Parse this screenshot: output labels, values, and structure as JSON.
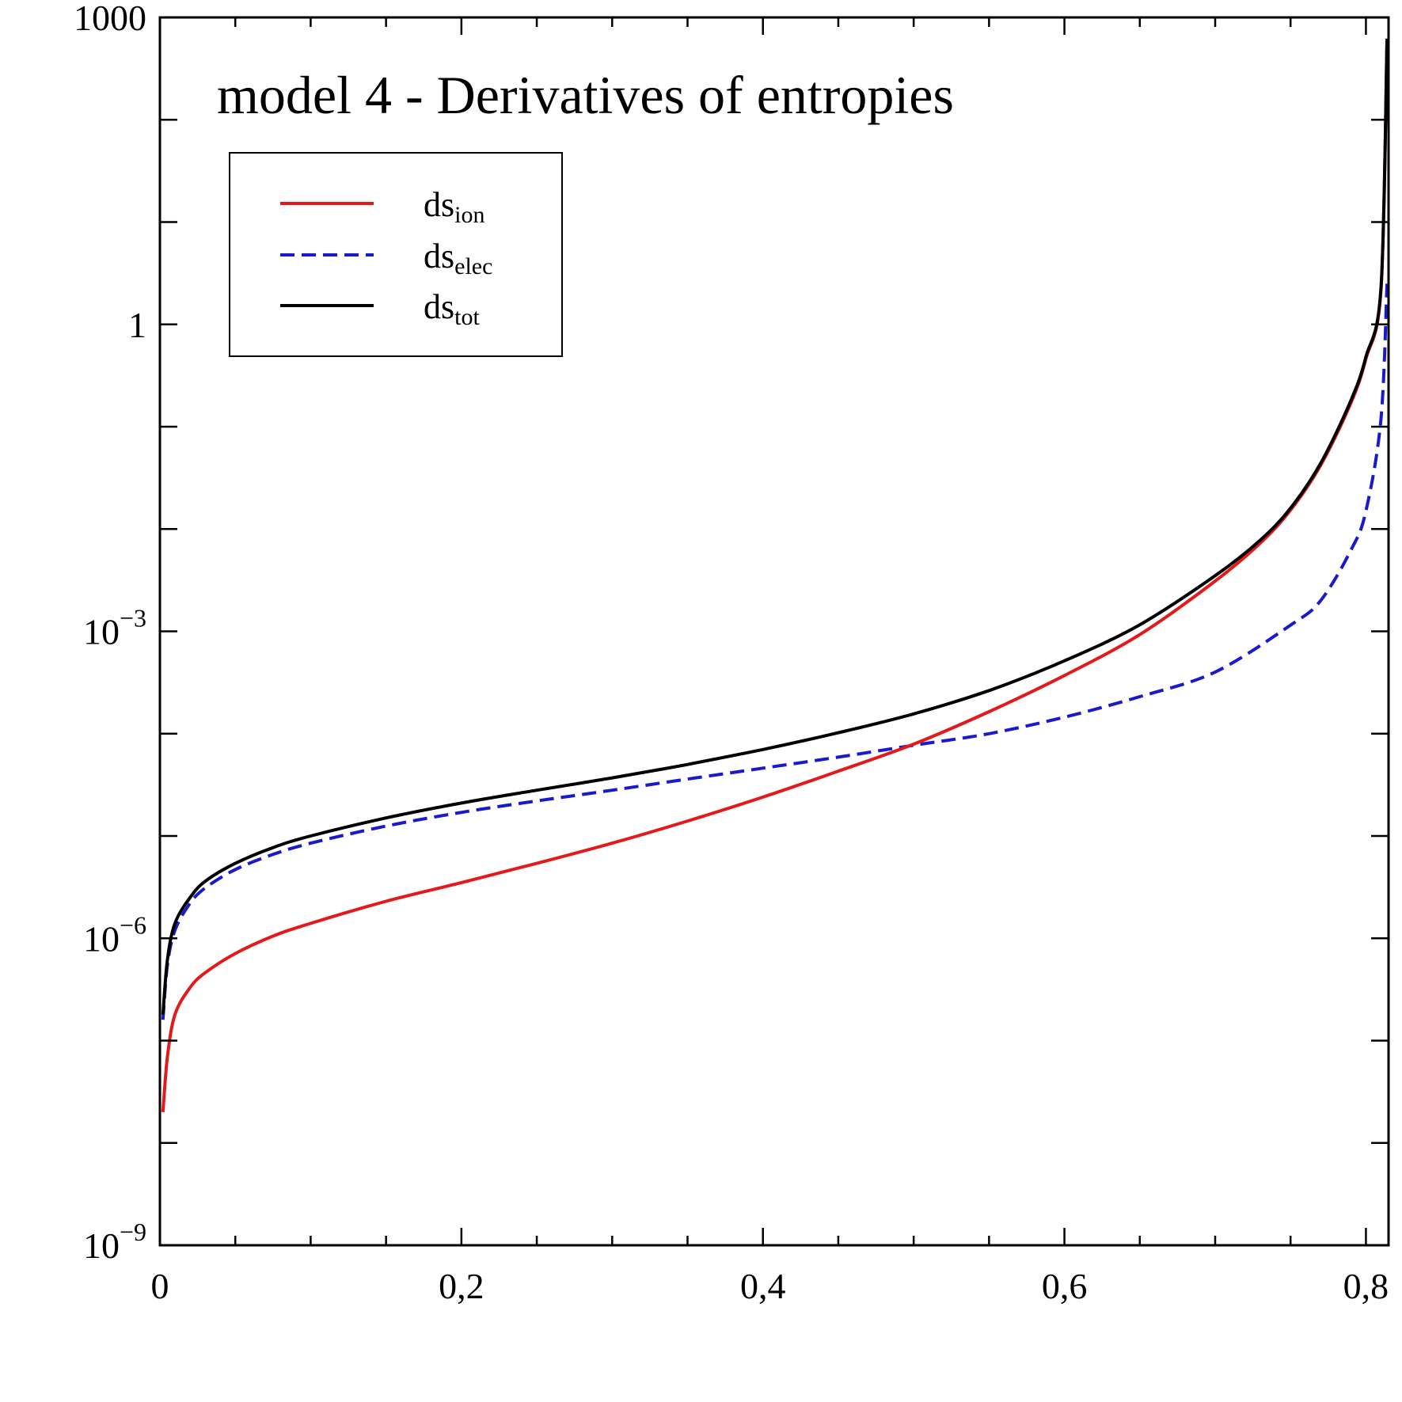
{
  "chart_data": {
    "type": "line",
    "title": "model 4 - Derivatives of entropies",
    "xlabel": "",
    "ylabel": "",
    "x_scale": "linear",
    "y_scale": "log",
    "xlim": [
      0,
      0.815
    ],
    "ylim": [
      1e-09,
      1000
    ],
    "x_ticks": [
      {
        "value": 0,
        "label": "0"
      },
      {
        "value": 0.2,
        "label": "0,2"
      },
      {
        "value": 0.4,
        "label": "0,4"
      },
      {
        "value": 0.6,
        "label": "0,6"
      },
      {
        "value": 0.8,
        "label": "0,8"
      }
    ],
    "y_ticks": [
      {
        "value": 1e-09,
        "base": "10",
        "exp": "−9"
      },
      {
        "value": 1e-06,
        "base": "10",
        "exp": "−6"
      },
      {
        "value": 0.001,
        "base": "10",
        "exp": "−3"
      },
      {
        "value": 1,
        "base": "1",
        "exp": ""
      },
      {
        "value": 1000,
        "base": "1000",
        "exp": ""
      }
    ],
    "legend": {
      "position": "top-left",
      "entries": [
        {
          "base": "ds",
          "sub": "ion"
        },
        {
          "base": "ds",
          "sub": "elec"
        },
        {
          "base": "ds",
          "sub": "tot"
        }
      ]
    },
    "series": [
      {
        "name": "ds_ion",
        "color": "#e31a1c",
        "dash": "solid",
        "x": [
          0.002,
          0.005,
          0.01,
          0.02,
          0.03,
          0.05,
          0.075,
          0.1,
          0.15,
          0.2,
          0.25,
          0.3,
          0.35,
          0.4,
          0.45,
          0.5,
          0.55,
          0.6,
          0.65,
          0.7,
          0.73,
          0.75,
          0.77,
          0.79,
          0.8,
          0.81,
          0.814
        ],
        "y": [
          2e-08,
          7e-08,
          1.8e-07,
          3.3e-07,
          4.6e-07,
          7.1e-07,
          1.05e-06,
          1.4e-06,
          2.3e-06,
          3.5e-06,
          5.4e-06,
          8.5e-06,
          1.4e-05,
          2.4e-05,
          4.3e-05,
          7.9e-05,
          0.000164,
          0.00037,
          0.00093,
          0.0031,
          0.0073,
          0.0153,
          0.042,
          0.17,
          0.46,
          2.2,
          600
        ]
      },
      {
        "name": "ds_elec",
        "color": "#1a1acc",
        "dash": "dashed",
        "x": [
          0.002,
          0.005,
          0.01,
          0.02,
          0.03,
          0.05,
          0.075,
          0.1,
          0.15,
          0.2,
          0.25,
          0.3,
          0.35,
          0.4,
          0.45,
          0.5,
          0.55,
          0.6,
          0.65,
          0.7,
          0.75,
          0.77,
          0.79,
          0.8,
          0.81,
          0.814
        ],
        "y": [
          1.6e-07,
          5.5e-07,
          1.2e-06,
          2.2e-06,
          3.1e-06,
          4.7e-06,
          6.6e-06,
          8.5e-06,
          1.25e-05,
          1.7e-05,
          2.2e-05,
          2.8e-05,
          3.6e-05,
          4.6e-05,
          5.9e-05,
          7.7e-05,
          0.0001,
          0.000145,
          0.00023,
          0.0004,
          0.00115,
          0.002,
          0.0062,
          0.015,
          0.12,
          2.5
        ]
      },
      {
        "name": "ds_tot",
        "color": "#000000",
        "dash": "solid",
        "x": [
          0.002,
          0.005,
          0.01,
          0.02,
          0.03,
          0.05,
          0.075,
          0.1,
          0.15,
          0.2,
          0.25,
          0.3,
          0.35,
          0.4,
          0.45,
          0.5,
          0.55,
          0.6,
          0.65,
          0.7,
          0.73,
          0.75,
          0.77,
          0.79,
          0.8,
          0.81,
          0.814
        ],
        "y": [
          1.8e-07,
          6.2e-07,
          1.4e-06,
          2.5e-06,
          3.6e-06,
          5.4e-06,
          7.7e-06,
          1e-05,
          1.5e-05,
          2.1e-05,
          2.8e-05,
          3.7e-05,
          5e-05,
          7e-05,
          0.000102,
          0.000156,
          0.000264,
          0.000515,
          0.00116,
          0.0035,
          0.0078,
          0.016,
          0.044,
          0.18,
          0.48,
          2.3,
          620
        ]
      }
    ]
  }
}
